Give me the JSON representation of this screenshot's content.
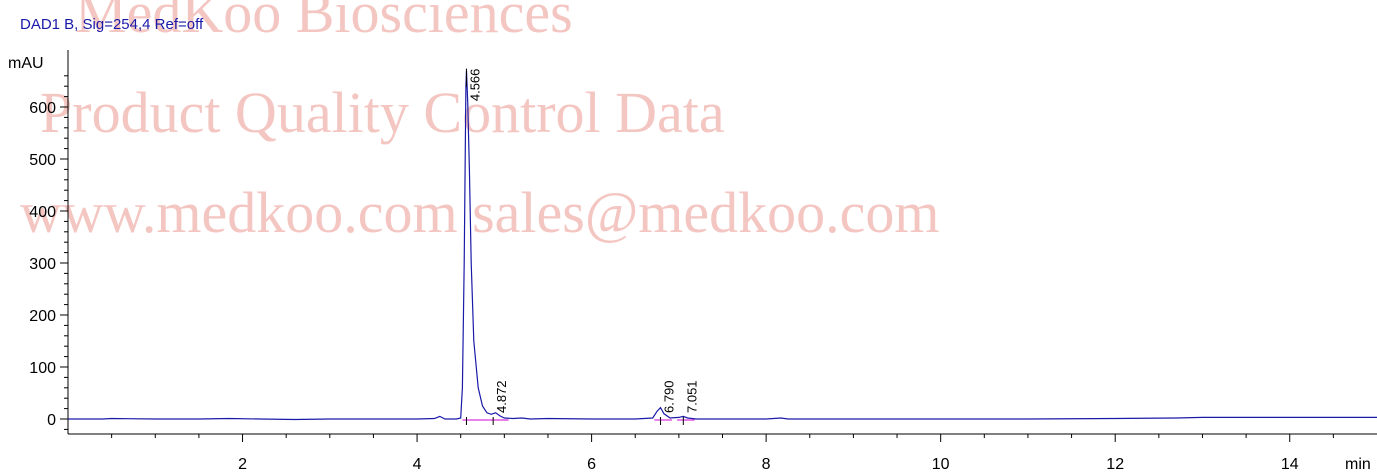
{
  "watermark": {
    "line1": "MedKoo Biosciences",
    "line2": "Product Quality Control Data",
    "line3": "www.medkoo.com    sales@medkoo.com"
  },
  "chart_data": {
    "type": "line",
    "title": "DAD1 B, Sig=254,4 Ref=off",
    "ylabel": "mAU",
    "xlabel": "min",
    "xlim": [
      0,
      15
    ],
    "ylim": [
      -25,
      690
    ],
    "x_ticks": [
      2,
      4,
      6,
      8,
      10,
      12,
      14
    ],
    "y_ticks": [
      0,
      100,
      200,
      300,
      400,
      500,
      600
    ],
    "grid": false,
    "colors": {
      "signal": "#1a1aa8",
      "baseline": "#d400d4",
      "axis": "#000000"
    },
    "peaks": [
      {
        "rt": 4.566,
        "label": "4.566",
        "height": 670
      },
      {
        "rt": 4.872,
        "label": "4.872",
        "height": 12
      },
      {
        "rt": 6.79,
        "label": "6.790",
        "height": 22
      },
      {
        "rt": 7.051,
        "label": "7.051",
        "height": 5
      }
    ],
    "series": [
      {
        "x": [
          0,
          0.4,
          0.5,
          1.0,
          1.5,
          1.85,
          2.2,
          2.6,
          3.0,
          3.5,
          4.0,
          4.2,
          4.26,
          4.32,
          4.45,
          4.5,
          4.52,
          4.54,
          4.56,
          4.566,
          4.58,
          4.6,
          4.62,
          4.65,
          4.7,
          4.75,
          4.8,
          4.85,
          4.9,
          4.95,
          5.0,
          5.1,
          5.2,
          5.3,
          5.5,
          6.0,
          6.5,
          6.7,
          6.75,
          6.79,
          6.83,
          6.9,
          7.0,
          7.05,
          7.1,
          7.2,
          7.5,
          8.0,
          8.17,
          8.25,
          8.5,
          9.0,
          10.0,
          11.0,
          12.0,
          12.7,
          13.0,
          14.0,
          15.0
        ],
        "values": [
          0,
          0,
          1,
          0,
          0,
          1,
          0,
          -1,
          0,
          0,
          0,
          1,
          5,
          0,
          0,
          2,
          60,
          300,
          640,
          670,
          610,
          480,
          300,
          150,
          60,
          25,
          12,
          9,
          12,
          6,
          2,
          1,
          2,
          0,
          1,
          0,
          0,
          2,
          15,
          22,
          10,
          2,
          3,
          5,
          2,
          0,
          0,
          0,
          2,
          0,
          0,
          0,
          0,
          0,
          1,
          2,
          3,
          3,
          3
        ]
      }
    ]
  }
}
